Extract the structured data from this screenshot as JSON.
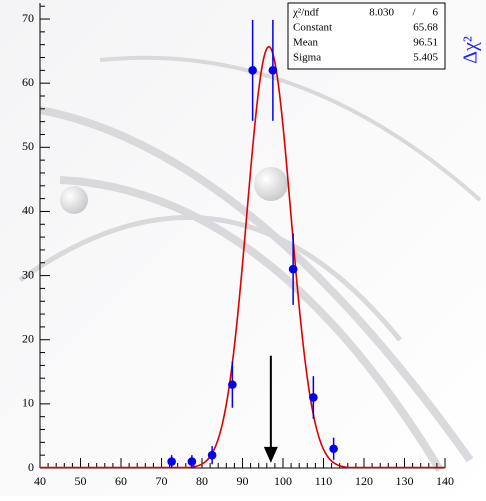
{
  "chart_data": {
    "type": "histogram-fit",
    "x": [
      72.5,
      77.5,
      82.5,
      87.5,
      92.5,
      97.5,
      102.5,
      107.5,
      112.5
    ],
    "series": [
      {
        "color": "#0000ee",
        "values": [
          1,
          1,
          2,
          13,
          62,
          62,
          31,
          11,
          3
        ],
        "errors": [
          1,
          1,
          1.41,
          3.61,
          7.87,
          7.87,
          5.57,
          3.32,
          1.73
        ]
      }
    ],
    "fit": {
      "color": "#dd0000",
      "constant": 65.68,
      "mean": 96.51,
      "sigma": 5.405
    },
    "arrow": {
      "x": 97,
      "y_from": 17.5,
      "y_to": 0.8
    },
    "xlim": [
      40,
      140
    ],
    "xticks": [
      40,
      50,
      60,
      70,
      80,
      90,
      100,
      110,
      120,
      130,
      140
    ],
    "ylim": [
      0,
      72.5
    ],
    "yticks": [
      0,
      10,
      20,
      30,
      40,
      50,
      60,
      70
    ],
    "minor_per_major": 5,
    "side_label": "Δχ²",
    "stats": [
      [
        "χ²/ndf",
        "8.030",
        "/",
        "6"
      ],
      [
        "Constant",
        "65.68"
      ],
      [
        "Mean",
        "96.51"
      ],
      [
        "Sigma",
        "5.405"
      ]
    ]
  }
}
